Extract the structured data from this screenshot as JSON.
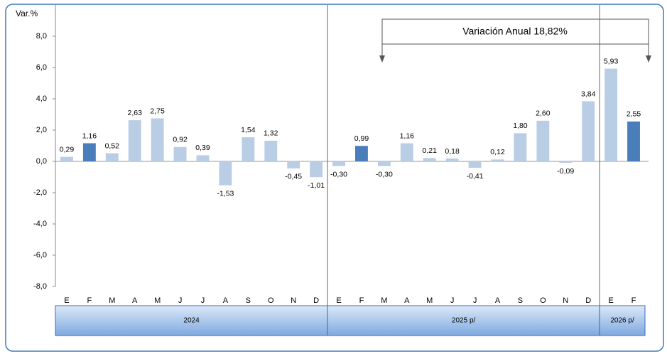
{
  "chart_data": {
    "type": "bar",
    "y_label": "Var.%",
    "annotation": "Variación Anual 18,82%",
    "ylim": [
      -8,
      10
    ],
    "yticks": [
      {
        "value": 8,
        "label": "8,0"
      },
      {
        "value": 6,
        "label": "6,0"
      },
      {
        "value": 4,
        "label": "4,0"
      },
      {
        "value": 2,
        "label": "2,0"
      },
      {
        "value": 0,
        "label": "0,0"
      },
      {
        "value": -2,
        "label": "-2,0"
      },
      {
        "value": -4,
        "label": "-4,0"
      },
      {
        "value": -6,
        "label": "-6,0"
      },
      {
        "value": -8,
        "label": "-8,0"
      }
    ],
    "groups": [
      {
        "label": "2024",
        "categories": [
          "E",
          "F",
          "M",
          "A",
          "M",
          "J",
          "J",
          "A",
          "S",
          "O",
          "N",
          "D"
        ],
        "values": [
          0.29,
          1.16,
          0.52,
          2.63,
          2.75,
          0.92,
          0.39,
          -1.53,
          1.54,
          1.32,
          -0.45,
          -1.01
        ],
        "value_labels": [
          "0,29",
          "1,16",
          "0,52",
          "2,63",
          "2,75",
          "0,92",
          "0,39",
          "-1,53",
          "1,54",
          "1,32",
          "-0,45",
          "-1,01"
        ],
        "colors": [
          "#b9cde5",
          "#4a7ebb",
          "#b9cde5",
          "#b9cde5",
          "#b9cde5",
          "#b9cde5",
          "#b9cde5",
          "#b9cde5",
          "#b9cde5",
          "#b9cde5",
          "#b9cde5",
          "#b9cde5"
        ]
      },
      {
        "label": "2025 p/",
        "categories": [
          "E",
          "F",
          "M",
          "A",
          "M",
          "J",
          "J",
          "A",
          "S",
          "O",
          "N",
          "D"
        ],
        "values": [
          -0.3,
          0.99,
          -0.3,
          1.16,
          0.21,
          0.18,
          -0.41,
          0.12,
          1.8,
          2.6,
          -0.09,
          3.84
        ],
        "value_labels": [
          "-0,30",
          "0,99",
          "-0,30",
          "1,16",
          "0,21",
          "0,18",
          "-0,41",
          "0,12",
          "1,80",
          "2,60",
          "-0,09",
          "3,84"
        ],
        "colors": [
          "#b9cde5",
          "#4a7ebb",
          "#b9cde5",
          "#b9cde5",
          "#b9cde5",
          "#b9cde5",
          "#b9cde5",
          "#b9cde5",
          "#b9cde5",
          "#b9cde5",
          "#b9cde5",
          "#b9cde5"
        ]
      },
      {
        "label": "2026 p/",
        "categories": [
          "E",
          "F"
        ],
        "values": [
          5.93,
          2.55
        ],
        "value_labels": [
          "5,93",
          "2,55"
        ],
        "colors": [
          "#b9cde5",
          "#4a7ebb"
        ]
      }
    ]
  }
}
